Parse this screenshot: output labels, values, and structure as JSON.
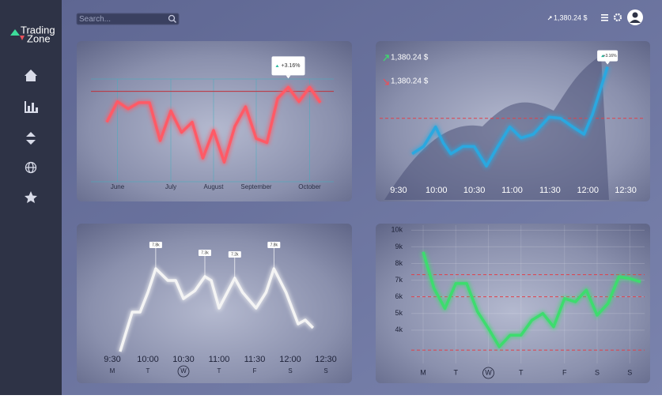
{
  "brand": {
    "name_top": "Trading",
    "name_bottom": "Zone"
  },
  "search_placeholder": "Search...",
  "balance": "1,380.24 $",
  "chart_data": [
    {
      "type": "line",
      "color": "#ff5a66",
      "categories": [
        null,
        "June",
        null,
        null,
        null,
        null,
        "July",
        null,
        null,
        null,
        "August",
        null,
        null,
        null,
        "September",
        null,
        null,
        null,
        null,
        "October",
        null
      ],
      "values": [
        58,
        78,
        71,
        77,
        77,
        40,
        69,
        48,
        58,
        23,
        50,
        19,
        54,
        73,
        42,
        38,
        81,
        92,
        78,
        92,
        77
      ],
      "ylim": [
        0,
        100
      ],
      "grid": true,
      "reference_lines": [
        88
      ],
      "reference_line_color": "#c0303a",
      "reference_line_dashed": false,
      "annotation": {
        "text": "+3.16%",
        "index": 17
      }
    },
    {
      "type": "line",
      "color": "#2aa8e0",
      "x": [
        9.68,
        9.83,
        9.99,
        10.09,
        10.19,
        10.35,
        10.5,
        10.66,
        10.81,
        10.97,
        11.12,
        11.28,
        11.49,
        11.64,
        11.8,
        11.95,
        12.06,
        12.26
      ],
      "values": [
        26,
        32,
        48,
        35,
        26,
        32,
        32,
        16,
        32,
        48,
        39,
        42,
        56,
        55,
        48,
        42,
        58,
        97
      ],
      "xlim": [
        9.25,
        12.75
      ],
      "ylim": [
        0,
        100
      ],
      "xticks": [
        {
          "value": 9.5,
          "label": "9:30"
        },
        {
          "value": 10,
          "label": "10:00"
        },
        {
          "value": 10.5,
          "label": "10:30"
        },
        {
          "value": 11,
          "label": "11:00"
        },
        {
          "value": 11.5,
          "label": "11:30"
        },
        {
          "value": 12,
          "label": "12:00"
        },
        {
          "value": 12.5,
          "label": "12:30"
        }
      ],
      "reference_lines": [
        55
      ],
      "reference_line_color": "#e0404a",
      "reference_line_dashed": true,
      "legend": [
        {
          "text": "1,380.24 $",
          "color": "#3ddc6e"
        },
        {
          "text": "1,380.24 $",
          "color": "#e8505b"
        }
      ],
      "annotation": {
        "text": "+3.16%",
        "index": 17
      }
    },
    {
      "type": "line",
      "color": "#f4f4f4",
      "x": [
        9.61,
        9.78,
        9.89,
        10.0,
        10.11,
        10.28,
        10.39,
        10.5,
        10.66,
        10.8,
        10.89,
        11.0,
        11.22,
        11.33,
        11.52,
        11.66,
        11.77,
        11.94,
        12.11,
        12.21,
        12.32
      ],
      "values": [
        2.55,
        5.05,
        5.05,
        6.3,
        7.8,
        7.05,
        7.05,
        5.9,
        6.4,
        7.3,
        7.05,
        5.3,
        7.2,
        6.3,
        5.3,
        6.3,
        7.8,
        6.3,
        4.3,
        4.55,
        4.05
      ],
      "value_labels": [
        null,
        null,
        null,
        null,
        "7.8k",
        null,
        null,
        null,
        null,
        "7.3k",
        null,
        null,
        "7.2k",
        null,
        null,
        null,
        "7.8k",
        null,
        null,
        null,
        null
      ],
      "xlim": [
        9.2,
        12.7
      ],
      "ylim": [
        1.8,
        10.3
      ],
      "xticks": [
        {
          "value": 9.5,
          "label": "9:30"
        },
        {
          "value": 10,
          "label": "10:00"
        },
        {
          "value": 10.5,
          "label": "10:30"
        },
        {
          "value": 11,
          "label": "11:00"
        },
        {
          "value": 11.5,
          "label": "11:30"
        },
        {
          "value": 12,
          "label": "12:00"
        },
        {
          "value": 12.5,
          "label": "12:30"
        }
      ],
      "days": [
        "M",
        "T",
        "W",
        "T",
        "F",
        "S",
        "S"
      ],
      "selected_day_index": 2
    },
    {
      "type": "line",
      "color": "#3ddc6e",
      "categories": [
        "M",
        null,
        null,
        "T",
        null,
        null,
        "W",
        null,
        null,
        "T",
        null,
        null,
        null,
        "F",
        null,
        null,
        "S",
        null,
        null,
        "S",
        null
      ],
      "values": [
        8700,
        6500,
        5300,
        6800,
        6800,
        5100,
        4100,
        3000,
        3700,
        3700,
        4600,
        5000,
        4200,
        5900,
        5700,
        6400,
        4900,
        5600,
        7200,
        7100,
        6900
      ],
      "selected_day_index": 6,
      "ylim": [
        2000,
        10300
      ],
      "grid": true,
      "yticks": [
        {
          "value": 4000,
          "label": "4k"
        },
        {
          "value": 5000,
          "label": "5k"
        },
        {
          "value": 6000,
          "label": "6k"
        },
        {
          "value": 7000,
          "label": "7k"
        },
        {
          "value": 8000,
          "label": "8k"
        },
        {
          "value": 9000,
          "label": "9k"
        },
        {
          "value": 10000,
          "label": "10k"
        }
      ],
      "reference_lines": [
        7330,
        6000,
        2800
      ],
      "reference_line_color": "#e0404a",
      "reference_line_dashed": true
    }
  ]
}
